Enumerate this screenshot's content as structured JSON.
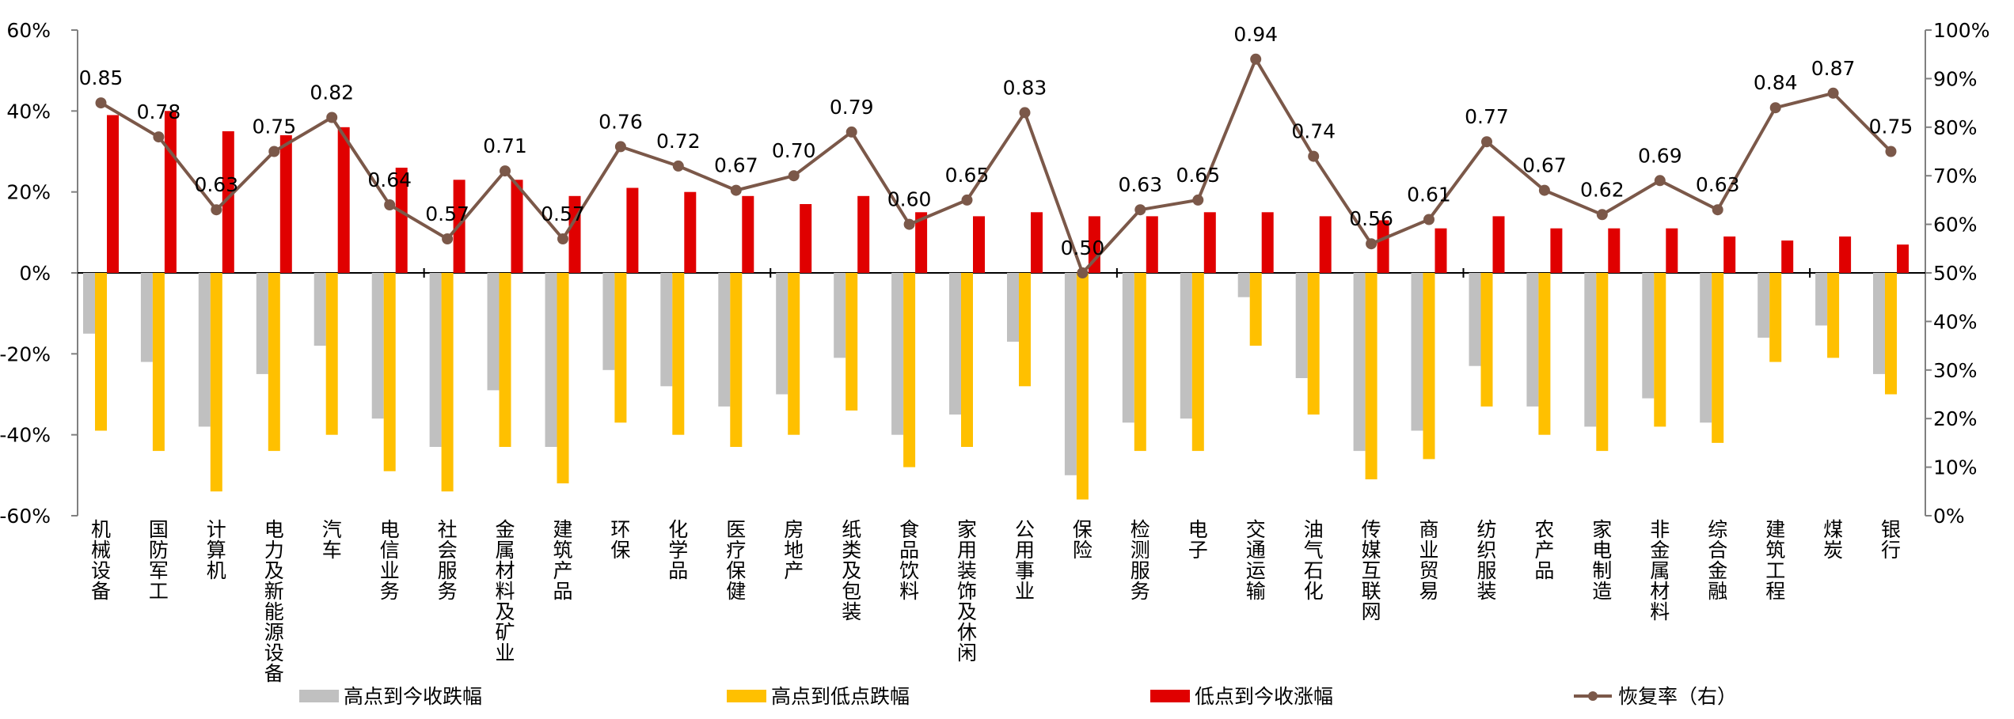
{
  "chart_data": {
    "type": "bar",
    "title": "",
    "categories": [
      "机械设备",
      "国防军工",
      "计算机",
      "电力及新能源设备",
      "汽车",
      "电信业务",
      "社会服务",
      "金属材料及矿业",
      "建筑产品",
      "环保",
      "化学品",
      "医疗保健",
      "房地产",
      "纸类及包装",
      "食品饮料",
      "家用装饰及休闲",
      "公用事业",
      "保险",
      "检测服务",
      "电子",
      "交通运输",
      "油气石化",
      "传媒互联网",
      "商业贸易",
      "纺织服装",
      "农产品",
      "家电制造",
      "非金属材料",
      "综合金融",
      "建筑工程",
      "煤炭",
      "银行"
    ],
    "series": [
      {
        "name": "高点到今收跌幅",
        "axis": "left",
        "color": "#c0c0c0",
        "values": [
          -15,
          -22,
          -38,
          -25,
          -18,
          -36,
          -43,
          -29,
          -43,
          -24,
          -28,
          -33,
          -30,
          -21,
          -40,
          -35,
          -17,
          -50,
          -37,
          -36,
          -6,
          -26,
          -44,
          -39,
          -23,
          -33,
          -38,
          -31,
          -37,
          -16,
          -13,
          -25
        ]
      },
      {
        "name": "高点到低点跌幅",
        "axis": "left",
        "color": "#ffc000",
        "values": [
          -39,
          -44,
          -54,
          -44,
          -40,
          -49,
          -54,
          -43,
          -52,
          -37,
          -40,
          -43,
          -40,
          -34,
          -48,
          -43,
          -28,
          -56,
          -44,
          -44,
          -18,
          -35,
          -51,
          -46,
          -33,
          -40,
          -44,
          -38,
          -42,
          -22,
          -21,
          -30
        ]
      },
      {
        "name": "低点到今收涨幅",
        "axis": "left",
        "color": "#e00000",
        "values": [
          39,
          40,
          35,
          34,
          36,
          26,
          23,
          23,
          19,
          21,
          20,
          19,
          17,
          19,
          15,
          14,
          15,
          14,
          14,
          15,
          15,
          14,
          13,
          11,
          14,
          11,
          11,
          11,
          9,
          8,
          9,
          7
        ]
      },
      {
        "name": "恢复率（右）",
        "axis": "right",
        "type": "line",
        "color": "#7b5849",
        "values": [
          0.85,
          0.78,
          0.63,
          0.75,
          0.82,
          0.64,
          0.57,
          0.71,
          0.57,
          0.76,
          0.72,
          0.67,
          0.7,
          0.79,
          0.6,
          0.65,
          0.83,
          0.5,
          0.63,
          0.65,
          0.94,
          0.74,
          0.56,
          0.61,
          0.77,
          0.67,
          0.62,
          0.69,
          0.63,
          0.84,
          0.87,
          0.75
        ],
        "labels": [
          "0.85",
          "0.78",
          "0.63",
          "0.75",
          "0.82",
          "0.64",
          "0.57",
          "0.71",
          "0.57",
          "0.76",
          "0.72",
          "0.67",
          "0.70",
          "0.79",
          "0.60",
          "0.65",
          "0.83",
          "0.50",
          "0.63",
          "0.65",
          "0.94",
          "0.74",
          "0.56",
          "0.61",
          "0.77",
          "0.67",
          "0.62",
          "0.69",
          "0.63",
          "0.84",
          "0.87",
          "0.75"
        ]
      }
    ],
    "y_left": {
      "min": -60,
      "max": 60,
      "step": 20,
      "ticks": [
        "-60%",
        "-40%",
        "-20%",
        "0%",
        "20%",
        "40%",
        "60%"
      ]
    },
    "y_right": {
      "min": 0,
      "max": 1,
      "step": 0.1,
      "ticks": [
        "0%",
        "10%",
        "20%",
        "30%",
        "40%",
        "50%",
        "60%",
        "70%",
        "80%",
        "90%",
        "100%"
      ]
    },
    "grid": false,
    "legend_position": "bottom"
  }
}
